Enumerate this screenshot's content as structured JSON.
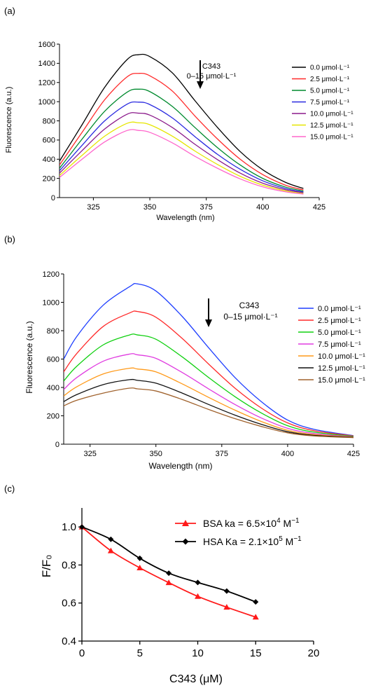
{
  "figure": {
    "panels": [
      {
        "panel_label": "(a)",
        "chart_data": {
          "type": "line",
          "xlabel": "Wavelength (nm)",
          "ylabel": "Fluorescence (a.u.)",
          "xlim": [
            310,
            425
          ],
          "ylim": [
            0,
            1600
          ],
          "xticks": [
            325,
            350,
            375,
            400,
            425
          ],
          "yticks": [
            0,
            200,
            400,
            600,
            800,
            1000,
            1200,
            1400,
            1600
          ],
          "legend_position": "right",
          "annotation": {
            "line1": "C343",
            "line2": "0–15 μmol·L⁻¹",
            "arrow": "down"
          },
          "x": [
            310,
            320,
            330,
            340,
            345,
            350,
            360,
            370,
            380,
            390,
            400,
            410,
            418
          ],
          "series": [
            {
              "name": "0.0 μmol·L⁻¹",
              "color": "#000000",
              "values": [
                380,
                760,
                1150,
                1440,
                1490,
                1470,
                1300,
                1010,
                730,
                480,
                290,
                160,
                95
              ]
            },
            {
              "name": "2.5 μmol·L⁻¹",
              "color": "#ff2a2a",
              "values": [
                340,
                680,
                1020,
                1260,
                1295,
                1270,
                1110,
                850,
                610,
                400,
                240,
                130,
                80
              ]
            },
            {
              "name": "5.0 μmol·L⁻¹",
              "color": "#008a2e",
              "values": [
                305,
                610,
                900,
                1100,
                1130,
                1105,
                950,
                730,
                520,
                340,
                200,
                110,
                68
              ]
            },
            {
              "name": "7.5 μmol·L⁻¹",
              "color": "#2a2ae0",
              "values": [
                280,
                545,
                800,
                975,
                995,
                970,
                830,
                635,
                450,
                295,
                175,
                95,
                58
              ]
            },
            {
              "name": "10.0 μmol·L⁻¹",
              "color": "#8b1a8b",
              "values": [
                255,
                490,
                715,
                870,
                880,
                860,
                730,
                555,
                395,
                255,
                150,
                82,
                50
              ]
            },
            {
              "name": "12.5 μmol·L⁻¹",
              "color": "#e6e600",
              "values": [
                230,
                440,
                640,
                775,
                780,
                760,
                640,
                485,
                345,
                222,
                130,
                70,
                42
              ]
            },
            {
              "name": "15.0 μmol·L⁻¹",
              "color": "#ff66cc",
              "values": [
                210,
                400,
                580,
                700,
                700,
                680,
                570,
                430,
                305,
                195,
                112,
                60,
                36
              ]
            }
          ]
        }
      },
      {
        "panel_label": "(b)",
        "chart_data": {
          "type": "line",
          "xlabel": "Wavelength (nm)",
          "ylabel": "Fluorescence (a.u.)",
          "xlim": [
            315,
            425
          ],
          "ylim": [
            0,
            1200
          ],
          "xticks": [
            325,
            350,
            375,
            400,
            425
          ],
          "yticks": [
            0,
            200,
            400,
            600,
            800,
            1000,
            1200
          ],
          "legend_position": "right",
          "annotation": {
            "line1": "C343",
            "line2": "0–15 μmol·L⁻¹",
            "arrow": "down"
          },
          "x": [
            315,
            320,
            330,
            340,
            343,
            350,
            360,
            370,
            380,
            390,
            400,
            410,
            425
          ],
          "series": [
            {
              "name": "0.0 μmol·L⁻¹",
              "color": "#1f3fff",
              "values": [
                600,
                760,
                980,
                1110,
                1130,
                1080,
                900,
                680,
                470,
                300,
                170,
                105,
                60
              ]
            },
            {
              "name": "2.5 μmol·L⁻¹",
              "color": "#ff2a2a",
              "values": [
                510,
                640,
                830,
                925,
                935,
                895,
                745,
                565,
                395,
                255,
                150,
                95,
                58
              ]
            },
            {
              "name": "5.0 μmol·L⁻¹",
              "color": "#10d010",
              "values": [
                445,
                550,
                700,
                770,
                770,
                740,
                615,
                470,
                335,
                220,
                130,
                85,
                55
              ]
            },
            {
              "name": "7.5 μmol·L⁻¹",
              "color": "#e03ce0",
              "values": [
                385,
                470,
                585,
                635,
                630,
                605,
                505,
                390,
                280,
                185,
                112,
                75,
                52
              ]
            },
            {
              "name": "10.0 μmol·L⁻¹",
              "color": "#ff9a1a",
              "values": [
                340,
                405,
                495,
                535,
                530,
                510,
                425,
                330,
                240,
                160,
                98,
                68,
                50
              ]
            },
            {
              "name": "12.5 μmol·L⁻¹",
              "color": "#111111",
              "values": [
                300,
                350,
                420,
                455,
                450,
                430,
                360,
                280,
                205,
                140,
                88,
                62,
                48
              ]
            },
            {
              "name": "15.0 μmol·L⁻¹",
              "color": "#a0622d",
              "values": [
                270,
                310,
                360,
                395,
                390,
                375,
                315,
                245,
                180,
                125,
                80,
                58,
                46
              ]
            }
          ]
        }
      },
      {
        "panel_label": "(c)",
        "chart_data": {
          "type": "scatter",
          "xlabel": "C343 (μM)",
          "ylabel": "F/F₀",
          "xlim": [
            0,
            20
          ],
          "ylim": [
            0.4,
            1.1
          ],
          "xticks": [
            0,
            5,
            10,
            15,
            20
          ],
          "yticks": [
            0.4,
            0.6,
            0.8,
            1.0
          ],
          "ytick_labels": [
            "0.4",
            "0.6",
            "0.8",
            "1.0"
          ],
          "legend_position": "top-right",
          "series": [
            {
              "name": "BSA ka = 6.5×10⁴ M⁻¹",
              "legend": {
                "pre": "BSA ka = 6.5×10",
                "exp": "4",
                "post": " M",
                "unit_exp": "−1"
              },
              "color": "#ff1a1a",
              "marker": "triangle",
              "x": [
                0,
                2.5,
                5,
                7.5,
                10,
                12.5,
                15
              ],
              "y": [
                1.0,
                0.875,
                0.785,
                0.707,
                0.635,
                0.578,
                0.526
              ]
            },
            {
              "name": "HSA Ka = 2.1×10⁵ M⁻¹",
              "legend": {
                "pre": "HSA Ka = 2.1×10",
                "exp": "5",
                "post": " M",
                "unit_exp": "−1"
              },
              "color": "#000000",
              "marker": "diamond",
              "x": [
                0,
                2.5,
                5,
                7.5,
                10,
                12.5,
                15
              ],
              "y": [
                1.0,
                0.935,
                0.835,
                0.757,
                0.708,
                0.663,
                0.606
              ]
            }
          ]
        }
      }
    ]
  }
}
